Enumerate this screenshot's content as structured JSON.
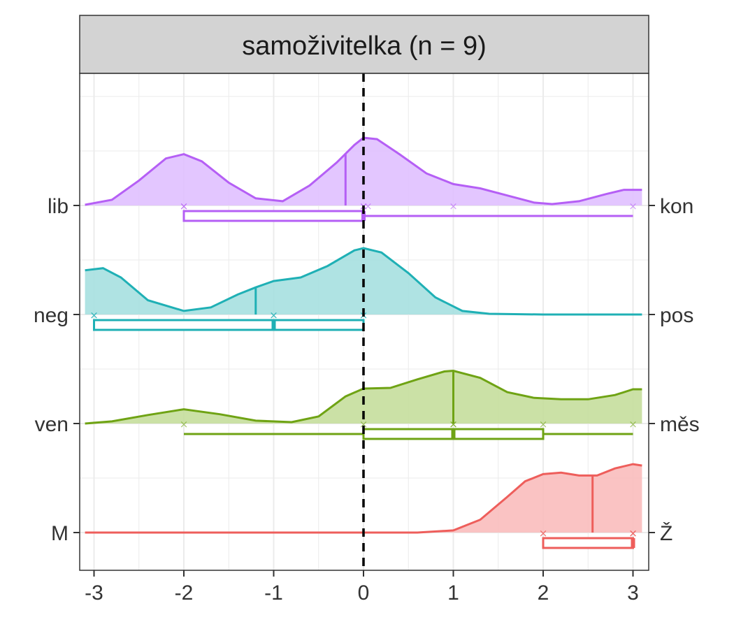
{
  "chart_data": {
    "type": "ridgeline",
    "facet_title": "samoživitelka (n = 9)",
    "x_ticks": [
      -3,
      -2,
      -1,
      0,
      1,
      2,
      3
    ],
    "x_tick_labels": [
      "-3",
      "-2",
      "-1",
      "0",
      "1",
      "2",
      "3"
    ],
    "xlim": [
      -3.1,
      3.1
    ],
    "reference_line_x": 0,
    "rows": [
      {
        "left_label": "lib",
        "right_label": "kon",
        "color": "#B55FF5",
        "fill": "#E0C0FF",
        "points": [
          -2,
          -2,
          0,
          0,
          0.05,
          1,
          3
        ],
        "median": -0.2,
        "box": {
          "q1": -2,
          "median": 0,
          "q3": 0,
          "whisker_low": -2,
          "whisker_high": 3
        },
        "density": [
          [
            -3.1,
            0.01
          ],
          [
            -2.8,
            0.08
          ],
          [
            -2.5,
            0.35
          ],
          [
            -2.2,
            0.66
          ],
          [
            -2.0,
            0.72
          ],
          [
            -1.8,
            0.62
          ],
          [
            -1.5,
            0.32
          ],
          [
            -1.2,
            0.1
          ],
          [
            -0.9,
            0.06
          ],
          [
            -0.6,
            0.28
          ],
          [
            -0.3,
            0.6
          ],
          [
            -0.1,
            0.85
          ],
          [
            0.0,
            0.95
          ],
          [
            0.15,
            0.93
          ],
          [
            0.4,
            0.72
          ],
          [
            0.7,
            0.45
          ],
          [
            1.0,
            0.3
          ],
          [
            1.3,
            0.24
          ],
          [
            1.6,
            0.14
          ],
          [
            1.9,
            0.04
          ],
          [
            2.1,
            0.02
          ],
          [
            2.4,
            0.06
          ],
          [
            2.7,
            0.16
          ],
          [
            2.9,
            0.22
          ],
          [
            3.1,
            0.22
          ]
        ]
      },
      {
        "left_label": "neg",
        "right_label": "pos",
        "color": "#1FB0B5",
        "fill": "#A6E0E0",
        "points": [
          -3,
          -3,
          -1,
          -1,
          0,
          0
        ],
        "median": -1.2,
        "box": {
          "q1": -3,
          "median": -1,
          "q3": 0,
          "whisker_low": -3,
          "whisker_high": 0
        },
        "density": [
          [
            -3.1,
            0.62
          ],
          [
            -2.9,
            0.65
          ],
          [
            -2.7,
            0.52
          ],
          [
            -2.4,
            0.2
          ],
          [
            -2.0,
            0.05
          ],
          [
            -1.7,
            0.1
          ],
          [
            -1.4,
            0.28
          ],
          [
            -1.2,
            0.38
          ],
          [
            -1.0,
            0.47
          ],
          [
            -0.7,
            0.52
          ],
          [
            -0.4,
            0.68
          ],
          [
            -0.1,
            0.9
          ],
          [
            0.0,
            0.93
          ],
          [
            0.2,
            0.87
          ],
          [
            0.5,
            0.58
          ],
          [
            0.8,
            0.24
          ],
          [
            1.1,
            0.05
          ],
          [
            1.4,
            0.01
          ],
          [
            2.0,
            0.0
          ],
          [
            3.1,
            0.0
          ]
        ]
      },
      {
        "left_label": "ven",
        "right_label": "měs",
        "color": "#6FA314",
        "fill": "#C5DE9C",
        "points": [
          -2,
          0,
          1,
          1,
          2,
          3
        ],
        "median": 1.0,
        "box": {
          "q1": 0,
          "median": 1,
          "q3": 2,
          "whisker_low": -2,
          "whisker_high": 3
        },
        "density": [
          [
            -3.1,
            0.0
          ],
          [
            -2.8,
            0.03
          ],
          [
            -2.4,
            0.12
          ],
          [
            -2.0,
            0.2
          ],
          [
            -1.6,
            0.13
          ],
          [
            -1.2,
            0.04
          ],
          [
            -0.8,
            0.02
          ],
          [
            -0.5,
            0.1
          ],
          [
            -0.2,
            0.38
          ],
          [
            0.0,
            0.49
          ],
          [
            0.3,
            0.5
          ],
          [
            0.6,
            0.62
          ],
          [
            0.9,
            0.73
          ],
          [
            1.0,
            0.74
          ],
          [
            1.3,
            0.64
          ],
          [
            1.6,
            0.44
          ],
          [
            1.9,
            0.36
          ],
          [
            2.2,
            0.34
          ],
          [
            2.5,
            0.34
          ],
          [
            2.8,
            0.4
          ],
          [
            3.0,
            0.48
          ],
          [
            3.1,
            0.48
          ]
        ]
      },
      {
        "left_label": "M",
        "right_label": "Ž",
        "color": "#EE5E5B",
        "fill": "#F9BDBD",
        "points": [
          2,
          2,
          3,
          3,
          3
        ],
        "median": 2.55,
        "box": {
          "q1": 2,
          "median": 3,
          "q3": 3,
          "whisker_low": 2,
          "whisker_high": 3
        },
        "density": [
          [
            -3.1,
            0.0
          ],
          [
            0.6,
            0.0
          ],
          [
            1.0,
            0.03
          ],
          [
            1.3,
            0.18
          ],
          [
            1.6,
            0.5
          ],
          [
            1.8,
            0.72
          ],
          [
            2.0,
            0.82
          ],
          [
            2.2,
            0.84
          ],
          [
            2.4,
            0.8
          ],
          [
            2.6,
            0.8
          ],
          [
            2.8,
            0.9
          ],
          [
            3.0,
            0.96
          ],
          [
            3.1,
            0.94
          ]
        ]
      }
    ]
  }
}
